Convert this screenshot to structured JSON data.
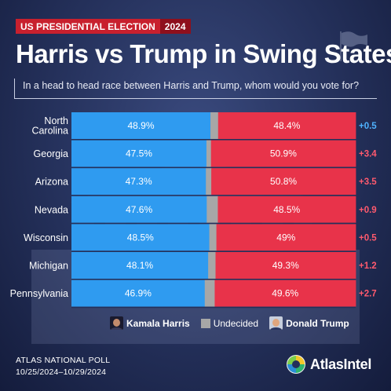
{
  "header": {
    "tag_left": "US PRESIDENTIAL ELECTION",
    "tag_right": "2024",
    "headline": "Harris vs Trump in Swing States",
    "question": "In a head to head race between Harris and Trump, whom would you vote for?"
  },
  "legend": {
    "harris": "Kamala Harris",
    "undecided": "Undecided",
    "trump": "Donald Trump"
  },
  "footer": {
    "poll": "ATLAS NATIONAL POLL",
    "dates": "10/25/2024–10/29/2024"
  },
  "brand": {
    "name": "AtlasIntel"
  },
  "colors": {
    "harris": "#2f9bf0",
    "trump": "#e8334a",
    "undecided": "#a7a7a7",
    "harris_margin": "#4fb2ff",
    "trump_margin": "#ff5a6e"
  },
  "chart_data": {
    "type": "bar",
    "orientation": "horizontal",
    "stacked": true,
    "categories": [
      "North Carolina",
      "Georgia",
      "Arizona",
      "Nevada",
      "Wisconsin",
      "Michigan",
      "Pennsylvania"
    ],
    "series": [
      {
        "name": "Kamala Harris",
        "values": [
          48.9,
          47.5,
          47.3,
          47.6,
          48.5,
          48.1,
          46.9
        ],
        "labels": [
          "48.9%",
          "47.5%",
          "47.3%",
          "47.6%",
          "48.5%",
          "48.1%",
          "46.9%"
        ]
      },
      {
        "name": "Undecided",
        "values": [
          2.7,
          1.6,
          1.9,
          3.9,
          2.5,
          2.6,
          3.5
        ]
      },
      {
        "name": "Donald Trump",
        "values": [
          48.4,
          50.9,
          50.8,
          48.5,
          49.0,
          49.3,
          49.6
        ],
        "labels": [
          "48.4%",
          "50.9%",
          "50.8%",
          "48.5%",
          "49%",
          "49.3%",
          "49.6%"
        ]
      }
    ],
    "margins": [
      {
        "label": "+0.5",
        "leader": "Harris"
      },
      {
        "label": "+3.4",
        "leader": "Trump"
      },
      {
        "label": "+3.5",
        "leader": "Trump"
      },
      {
        "label": "+0.9",
        "leader": "Trump"
      },
      {
        "label": "+0.5",
        "leader": "Trump"
      },
      {
        "label": "+1.2",
        "leader": "Trump"
      },
      {
        "label": "+2.7",
        "leader": "Trump"
      }
    ],
    "xlim": [
      0,
      100
    ]
  }
}
